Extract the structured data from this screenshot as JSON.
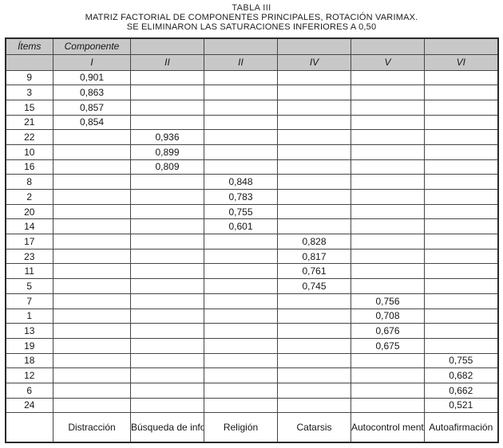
{
  "title": {
    "caption": "TABLA III",
    "line1": "MATRIZ FACTORIAL DE COMPONENTES PRINCIPALES, ROTACIÓN VARIMAX.",
    "line2": "SE ELIMINARON LAS SATURACIONES INFERIORES A 0,50"
  },
  "table": {
    "header": {
      "items_label": "Ítems",
      "componente_label": "Componente",
      "components": [
        "I",
        "II",
        "II",
        "IV",
        "V",
        "VI"
      ]
    },
    "rows": [
      {
        "item": "9",
        "component": 1,
        "value": "0,901"
      },
      {
        "item": "3",
        "component": 1,
        "value": "0,863"
      },
      {
        "item": "15",
        "component": 1,
        "value": "0,857"
      },
      {
        "item": "21",
        "component": 1,
        "value": "0,854"
      },
      {
        "item": "22",
        "component": 2,
        "value": "0,936"
      },
      {
        "item": "10",
        "component": 2,
        "value": "0,899"
      },
      {
        "item": "16",
        "component": 2,
        "value": "0,809"
      },
      {
        "item": "8",
        "component": 3,
        "value": "0,848"
      },
      {
        "item": "2",
        "component": 3,
        "value": "0,783"
      },
      {
        "item": "20",
        "component": 3,
        "value": "0,755"
      },
      {
        "item": "14",
        "component": 3,
        "value": "0,601"
      },
      {
        "item": "17",
        "component": 4,
        "value": "0,828"
      },
      {
        "item": "23",
        "component": 4,
        "value": "0,817"
      },
      {
        "item": "11",
        "component": 4,
        "value": "0,761"
      },
      {
        "item": "5",
        "component": 4,
        "value": "0,745"
      },
      {
        "item": "7",
        "component": 5,
        "value": "0,756"
      },
      {
        "item": "1",
        "component": 5,
        "value": "0,708"
      },
      {
        "item": "13",
        "component": 5,
        "value": "0,676"
      },
      {
        "item": "19",
        "component": 5,
        "value": "0,675"
      },
      {
        "item": "18",
        "component": 6,
        "value": "0,755"
      },
      {
        "item": "12",
        "component": 6,
        "value": "0,682"
      },
      {
        "item": "6",
        "component": 6,
        "value": "0,662"
      },
      {
        "item": "24",
        "component": 6,
        "value": "0,521"
      }
    ],
    "factor_names": [
      "Distracción",
      "Búsqueda de información",
      "Religión",
      "Catarsis",
      "Autocontrol mental",
      "Autoafirmación"
    ]
  }
}
